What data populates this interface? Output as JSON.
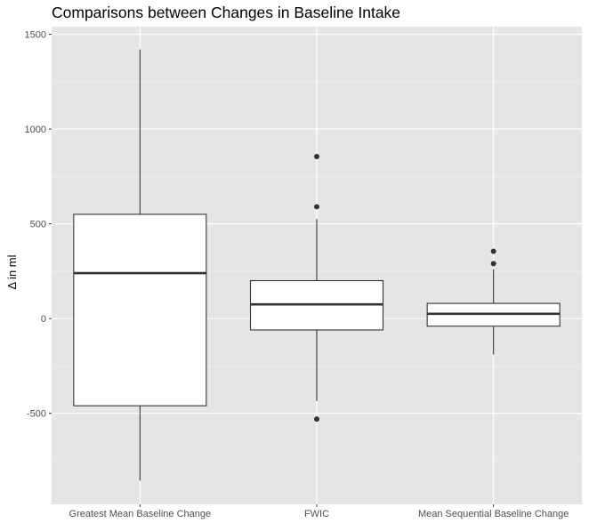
{
  "chart_data": {
    "type": "box",
    "title": "Comparisons between Changes in Baseline Intake",
    "xlabel": "",
    "ylabel": "Δ in ml",
    "categories": [
      "Greatest Mean Baseline Change",
      "FWIC",
      "Mean Sequential Baseline Change"
    ],
    "yticks": [
      -500,
      0,
      500,
      1000,
      1500
    ],
    "ytick_labels": [
      "-500",
      "0",
      "500",
      "1000",
      "1500"
    ],
    "ylim": [
      -980,
      1540
    ],
    "grid": true,
    "boxes": [
      {
        "lower_whisker": -855,
        "q1": -460,
        "median": 240,
        "q3": 550,
        "upper_whisker": 1420,
        "outliers": []
      },
      {
        "lower_whisker": -435,
        "q1": -60,
        "median": 75,
        "q3": 200,
        "upper_whisker": 525,
        "outliers": [
          855,
          590,
          -530
        ]
      },
      {
        "lower_whisker": -190,
        "q1": -40,
        "median": 25,
        "q3": 80,
        "upper_whisker": 260,
        "outliers": [
          355,
          290
        ]
      }
    ]
  }
}
